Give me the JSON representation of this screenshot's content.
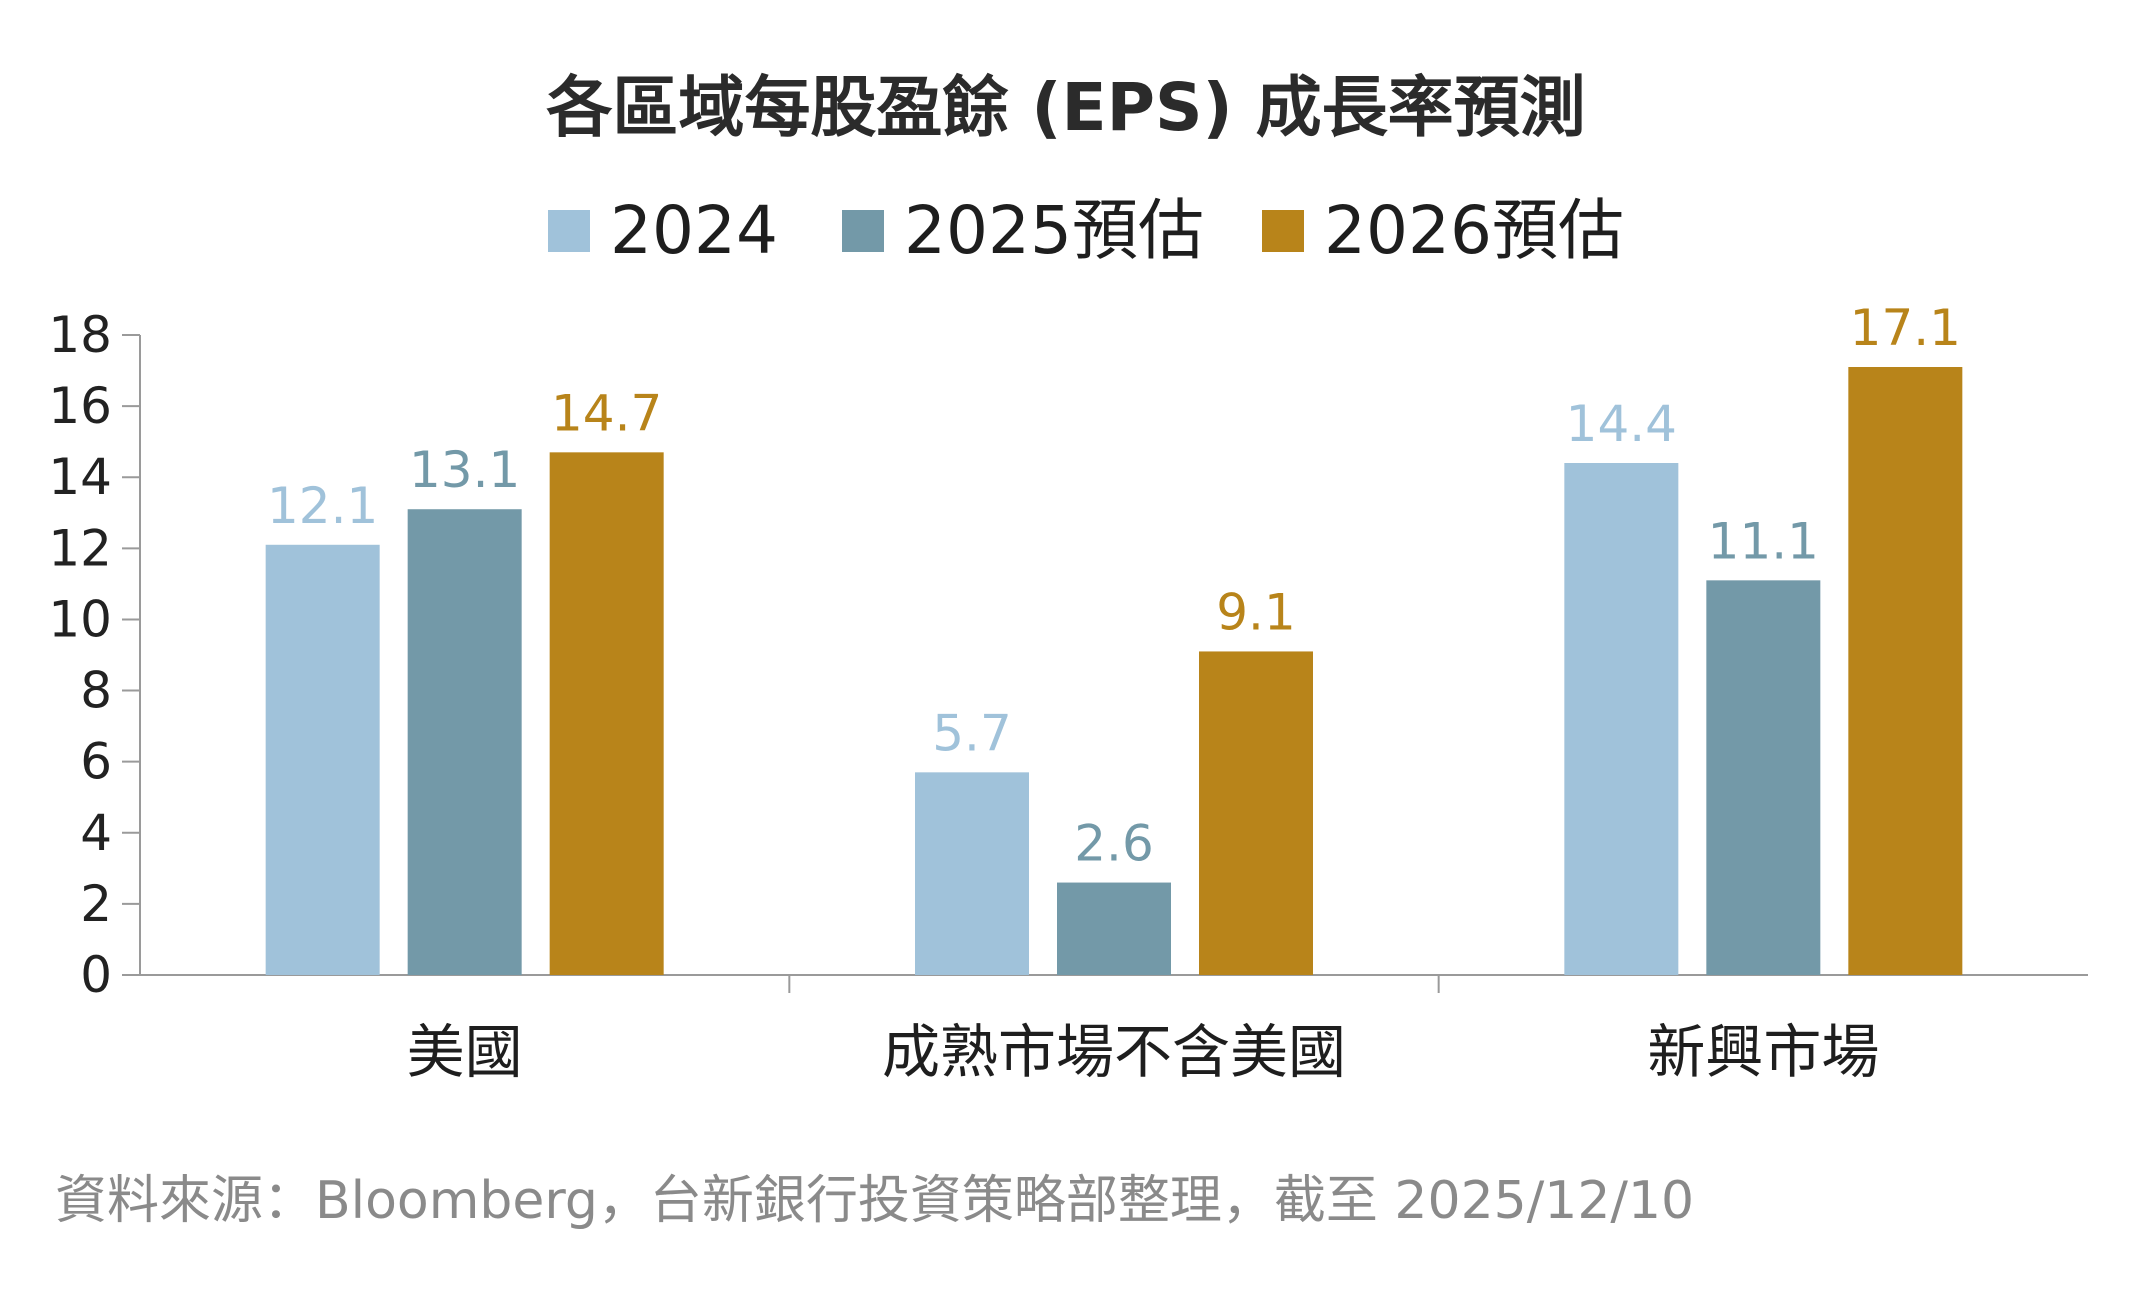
{
  "chart_data": {
    "type": "bar",
    "title": "各區域每股盈餘 (EPS) 成長率預測",
    "categories": [
      "美國",
      "成熟市場不含美國",
      "新興市場"
    ],
    "series": [
      {
        "name": "2024",
        "color": "#a0c2da",
        "values": [
          12.1,
          5.7,
          14.4
        ]
      },
      {
        "name": "2025預估",
        "color": "#7399a8",
        "values": [
          13.1,
          2.6,
          11.1
        ]
      },
      {
        "name": "2026預估",
        "color": "#b8841a",
        "values": [
          14.7,
          9.1,
          17.1
        ]
      }
    ],
    "value_labels": [
      [
        "12.1",
        "5.7",
        "14.4"
      ],
      [
        "13.1",
        "2.6",
        "11.1"
      ],
      [
        "14.7",
        "9.1",
        "17.1"
      ]
    ],
    "yticks": [
      "0",
      "2",
      "4",
      "6",
      "8",
      "10",
      "12",
      "14",
      "16",
      "18"
    ],
    "ylim": [
      0,
      18
    ],
    "legend_position": "top-center",
    "grid": false,
    "source": "資料來源：Bloomberg，台新銀行投資策略部整理，截至 2025/12/10"
  }
}
